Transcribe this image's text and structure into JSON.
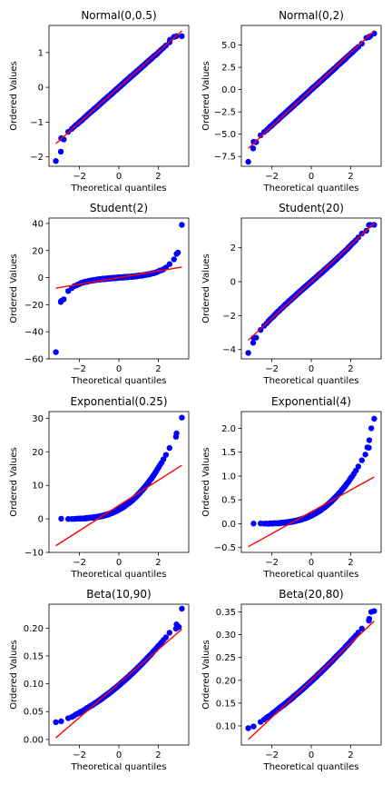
{
  "figure": {
    "background": "#ffffff"
  },
  "style": {
    "point_color": "#0000ff",
    "line_color": "#ff0000",
    "frame_color": "#000000"
  },
  "chart_data": [
    {
      "type": "scatter",
      "title": "Normal(0,0.5)",
      "xlabel": "Theoretical quantiles",
      "ylabel": "Ordered Values",
      "xlim": [
        -3.55,
        3.55
      ],
      "ylim": [
        -2.27,
        1.78
      ],
      "xticks": [
        -2,
        0,
        2
      ],
      "yticks": [
        -2,
        -1,
        0,
        1
      ],
      "dist": "normal",
      "params": [
        0,
        0.5
      ],
      "line": [
        [
          -3.2,
          -1.62
        ],
        [
          3.2,
          1.62
        ]
      ],
      "extremes_low": [
        [
          -3.2,
          -2.12
        ],
        [
          -2.95,
          -1.85
        ],
        [
          -2.8,
          -1.5
        ]
      ],
      "extremes_high": [
        [
          2.6,
          1.37
        ],
        [
          2.8,
          1.45
        ],
        [
          3.2,
          1.47
        ]
      ]
    },
    {
      "type": "scatter",
      "title": "Normal(0,2)",
      "xlabel": "Theoretical quantiles",
      "ylabel": "Ordered Values",
      "xlim": [
        -3.55,
        3.55
      ],
      "ylim": [
        -8.6,
        7.2
      ],
      "xticks": [
        -2,
        0,
        2
      ],
      "yticks": [
        -7.5,
        -5.0,
        -2.5,
        0.0,
        2.5,
        5.0
      ],
      "dist": "normal",
      "params": [
        0,
        2
      ],
      "line": [
        [
          -3.2,
          -6.6
        ],
        [
          3.2,
          6.6
        ]
      ],
      "extremes_low": [
        [
          -3.2,
          -8.1
        ],
        [
          -2.95,
          -6.6
        ],
        [
          -2.8,
          -5.9
        ]
      ],
      "extremes_high": [
        [
          2.8,
          5.8
        ],
        [
          3.0,
          6.0
        ],
        [
          3.2,
          6.3
        ]
      ]
    },
    {
      "type": "scatter",
      "title": "Student(2)",
      "xlabel": "Theoretical quantiles",
      "ylabel": "Ordered Values",
      "xlim": [
        -3.55,
        3.55
      ],
      "ylim": [
        -60,
        44
      ],
      "xticks": [
        -2,
        0,
        2
      ],
      "yticks": [
        -60,
        -40,
        -20,
        0,
        20,
        40
      ],
      "dist": "student",
      "params": [
        2
      ],
      "line": [
        [
          -3.2,
          -7.8
        ],
        [
          3.2,
          7.8
        ]
      ],
      "extremes_low": [
        [
          -3.2,
          -55
        ],
        [
          -2.95,
          -18
        ],
        [
          -2.8,
          -16
        ]
      ],
      "extremes_high": [
        [
          2.8,
          13.5
        ],
        [
          3.0,
          18.5
        ],
        [
          3.2,
          39
        ]
      ]
    },
    {
      "type": "scatter",
      "title": "Student(20)",
      "xlabel": "Theoretical quantiles",
      "ylabel": "Ordered Values",
      "xlim": [
        -3.55,
        3.55
      ],
      "ylim": [
        -4.55,
        3.75
      ],
      "xticks": [
        -2,
        0,
        2
      ],
      "yticks": [
        -4,
        -2,
        0,
        2
      ],
      "dist": "student",
      "params": [
        20
      ],
      "line": [
        [
          -3.2,
          -3.45
        ],
        [
          3.2,
          3.45
        ]
      ],
      "extremes_low": [
        [
          -3.2,
          -4.2
        ],
        [
          -2.95,
          -3.6
        ],
        [
          -2.8,
          -3.3
        ]
      ],
      "extremes_high": [
        [
          2.8,
          3.0
        ],
        [
          3.0,
          3.35
        ],
        [
          3.2,
          3.35
        ]
      ]
    },
    {
      "type": "scatter",
      "title": "Exponential(0.25)",
      "xlabel": "Theoretical quantiles",
      "ylabel": "Ordered Values",
      "xlim": [
        -3.55,
        3.55
      ],
      "ylim": [
        -10,
        32
      ],
      "xticks": [
        -2,
        0,
        2
      ],
      "yticks": [
        -10,
        0,
        10,
        20,
        30
      ],
      "dist": "exponential",
      "params": [
        0.25
      ],
      "line": [
        [
          -3.2,
          -8.0
        ],
        [
          3.2,
          16.0
        ]
      ],
      "extremes_low": [],
      "extremes_high": [
        [
          2.9,
          24.5
        ],
        [
          3.2,
          30.2
        ]
      ]
    },
    {
      "type": "scatter",
      "title": "Exponential(4)",
      "xlabel": "Theoretical quantiles",
      "ylabel": "Ordered Values",
      "xlim": [
        -3.55,
        3.55
      ],
      "ylim": [
        -0.6,
        2.35
      ],
      "xticks": [
        -2,
        0,
        2
      ],
      "yticks": [
        -0.5,
        0.0,
        0.5,
        1.0,
        1.5,
        2.0
      ],
      "dist": "exponential",
      "params": [
        4
      ],
      "line": [
        [
          -3.2,
          -0.48
        ],
        [
          3.2,
          0.98
        ]
      ],
      "extremes_low": [],
      "extremes_high": [
        [
          2.75,
          1.45
        ],
        [
          2.85,
          1.6
        ],
        [
          2.95,
          1.75
        ],
        [
          3.05,
          2.0
        ],
        [
          3.2,
          2.2
        ]
      ]
    },
    {
      "type": "scatter",
      "title": "Beta(10,90)",
      "xlabel": "Theoretical quantiles",
      "ylabel": "Ordered Values",
      "xlim": [
        -3.55,
        3.55
      ],
      "ylim": [
        -0.01,
        0.243
      ],
      "xticks": [
        -2,
        0,
        2
      ],
      "yticks": [
        0.0,
        0.05,
        0.1,
        0.15,
        0.2
      ],
      "dist": "beta",
      "params": [
        10,
        90
      ],
      "line": [
        [
          -3.2,
          0.003
        ],
        [
          3.2,
          0.198
        ]
      ],
      "extremes_low": [
        [
          -3.2,
          0.031
        ]
      ],
      "extremes_high": [
        [
          2.9,
          0.199
        ],
        [
          3.05,
          0.202
        ],
        [
          3.2,
          0.235
        ]
      ]
    },
    {
      "type": "scatter",
      "title": "Beta(20,80)",
      "xlabel": "Theoretical quantiles",
      "ylabel": "Ordered Values",
      "xlim": [
        -3.55,
        3.55
      ],
      "ylim": [
        0.058,
        0.367
      ],
      "xticks": [
        -2,
        0,
        2
      ],
      "yticks": [
        0.1,
        0.15,
        0.2,
        0.25,
        0.3,
        0.35
      ],
      "dist": "beta",
      "params": [
        20,
        80
      ],
      "line": [
        [
          -3.2,
          0.07
        ],
        [
          3.2,
          0.33
        ]
      ],
      "extremes_low": [
        [
          -3.2,
          0.095
        ]
      ],
      "extremes_high": [
        [
          2.95,
          0.335
        ],
        [
          3.05,
          0.35
        ],
        [
          3.2,
          0.352
        ]
      ]
    }
  ]
}
